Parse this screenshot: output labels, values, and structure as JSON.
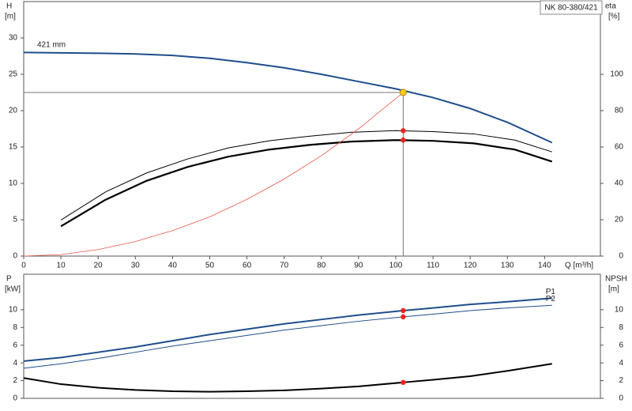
{
  "chart_data": [
    {
      "type": "line",
      "title": "NK 80-380/421",
      "annotation": "421 mm",
      "ylabel": "H",
      "yunit": "[m]",
      "y2label": "eta",
      "y2unit": "[%]",
      "xlabel": "Q [m³/h]",
      "xlim": [
        0,
        155
      ],
      "ylim": [
        0,
        35
      ],
      "y2lim": [
        0,
        140
      ],
      "xticks": [
        0,
        10,
        20,
        30,
        40,
        50,
        60,
        70,
        80,
        90,
        100,
        110,
        120,
        130,
        140
      ],
      "yticks": [
        0,
        5,
        10,
        15,
        20,
        25,
        30
      ],
      "y2ticks": [
        0,
        20,
        40,
        60,
        80,
        100
      ],
      "series": [
        {
          "color": "#1f4e8c",
          "width": 2,
          "x": [
            0,
            10,
            20,
            30,
            40,
            50,
            60,
            70,
            80,
            90,
            100,
            110,
            120,
            130,
            142
          ],
          "values": [
            28,
            27.95,
            27.9,
            27.8,
            27.6,
            27.2,
            26.6,
            25.9,
            25,
            24,
            23,
            21.8,
            20.3,
            18.4,
            15.6
          ]
        },
        {
          "color": "#000000",
          "width": 1,
          "axis": "y2",
          "x": [
            10,
            22,
            33,
            44,
            55,
            66,
            77,
            88,
            100,
            110,
            121,
            132,
            142
          ],
          "values": [
            19.8,
            35.3,
            45.7,
            53.4,
            59.5,
            63.4,
            66,
            68.1,
            69,
            68.5,
            67.2,
            63.8,
            57.3
          ]
        },
        {
          "color": "#000000",
          "width": 2.2,
          "axis": "y2",
          "x": [
            10,
            22,
            33,
            44,
            55,
            66,
            77,
            88,
            100,
            110,
            121,
            132,
            142
          ],
          "values": [
            16.4,
            31,
            41.4,
            49,
            54.7,
            58.6,
            61.2,
            63,
            63.8,
            63.4,
            62,
            58.6,
            52
          ]
        },
        {
          "color": "#e8574a",
          "width": 0.8,
          "x": [
            0,
            10,
            20,
            30,
            40,
            50,
            60,
            70,
            80,
            90,
            102
          ],
          "values": [
            0,
            0.2,
            0.9,
            2,
            3.5,
            5.4,
            7.8,
            10.6,
            13.8,
            17.5,
            22.5
          ]
        }
      ],
      "markers": [
        {
          "x": 102,
          "y": 69,
          "axis": "y2",
          "color": "#ee2222"
        },
        {
          "x": 102,
          "y": 63.8,
          "axis": "y2",
          "color": "#ee2222"
        }
      ],
      "duty_point": {
        "x": 102,
        "y": 22.5,
        "color": "#f5d020"
      }
    },
    {
      "type": "line",
      "ylabel": "P",
      "yunit": "[kW]",
      "y2label": "NPSH",
      "y2unit": "[m]",
      "xlim": [
        0,
        155
      ],
      "ylim": [
        0,
        14
      ],
      "y2lim": [
        0,
        14
      ],
      "yticks": [
        0,
        2,
        4,
        6,
        8,
        10
      ],
      "y2ticks": [
        0,
        2,
        4,
        6,
        8,
        10
      ],
      "series": [
        {
          "name": "P1",
          "color": "#1f4e8c",
          "width": 2,
          "x": [
            0,
            10,
            20,
            30,
            40,
            50,
            60,
            70,
            80,
            90,
            102,
            110,
            120,
            130,
            142
          ],
          "values": [
            4.2,
            4.6,
            5.2,
            5.8,
            6.5,
            7.2,
            7.8,
            8.4,
            8.9,
            9.4,
            9.9,
            10.2,
            10.6,
            10.9,
            11.3
          ]
        },
        {
          "name": "P2",
          "color": "#1f4e8c",
          "width": 1,
          "x": [
            0,
            10,
            20,
            30,
            40,
            50,
            60,
            70,
            80,
            90,
            102,
            110,
            120,
            130,
            142
          ],
          "values": [
            3.4,
            3.9,
            4.5,
            5.2,
            5.9,
            6.5,
            7.1,
            7.7,
            8.2,
            8.7,
            9.2,
            9.5,
            9.9,
            10.2,
            10.5
          ]
        },
        {
          "color": "#000000",
          "width": 2,
          "axis": "y2",
          "x": [
            0,
            10,
            20,
            30,
            40,
            50,
            60,
            70,
            80,
            90,
            102,
            110,
            120,
            130,
            142
          ],
          "values": [
            2.3,
            1.6,
            1.2,
            0.95,
            0.8,
            0.75,
            0.8,
            0.9,
            1.1,
            1.35,
            1.8,
            2.1,
            2.5,
            3.1,
            3.9
          ]
        }
      ],
      "markers": [
        {
          "x": 102,
          "y": 9.9,
          "color": "#ee2222"
        },
        {
          "x": 102,
          "y": 9.2,
          "color": "#ee2222"
        },
        {
          "x": 102,
          "y": 1.8,
          "axis": "y2",
          "color": "#ee2222"
        }
      ]
    }
  ]
}
